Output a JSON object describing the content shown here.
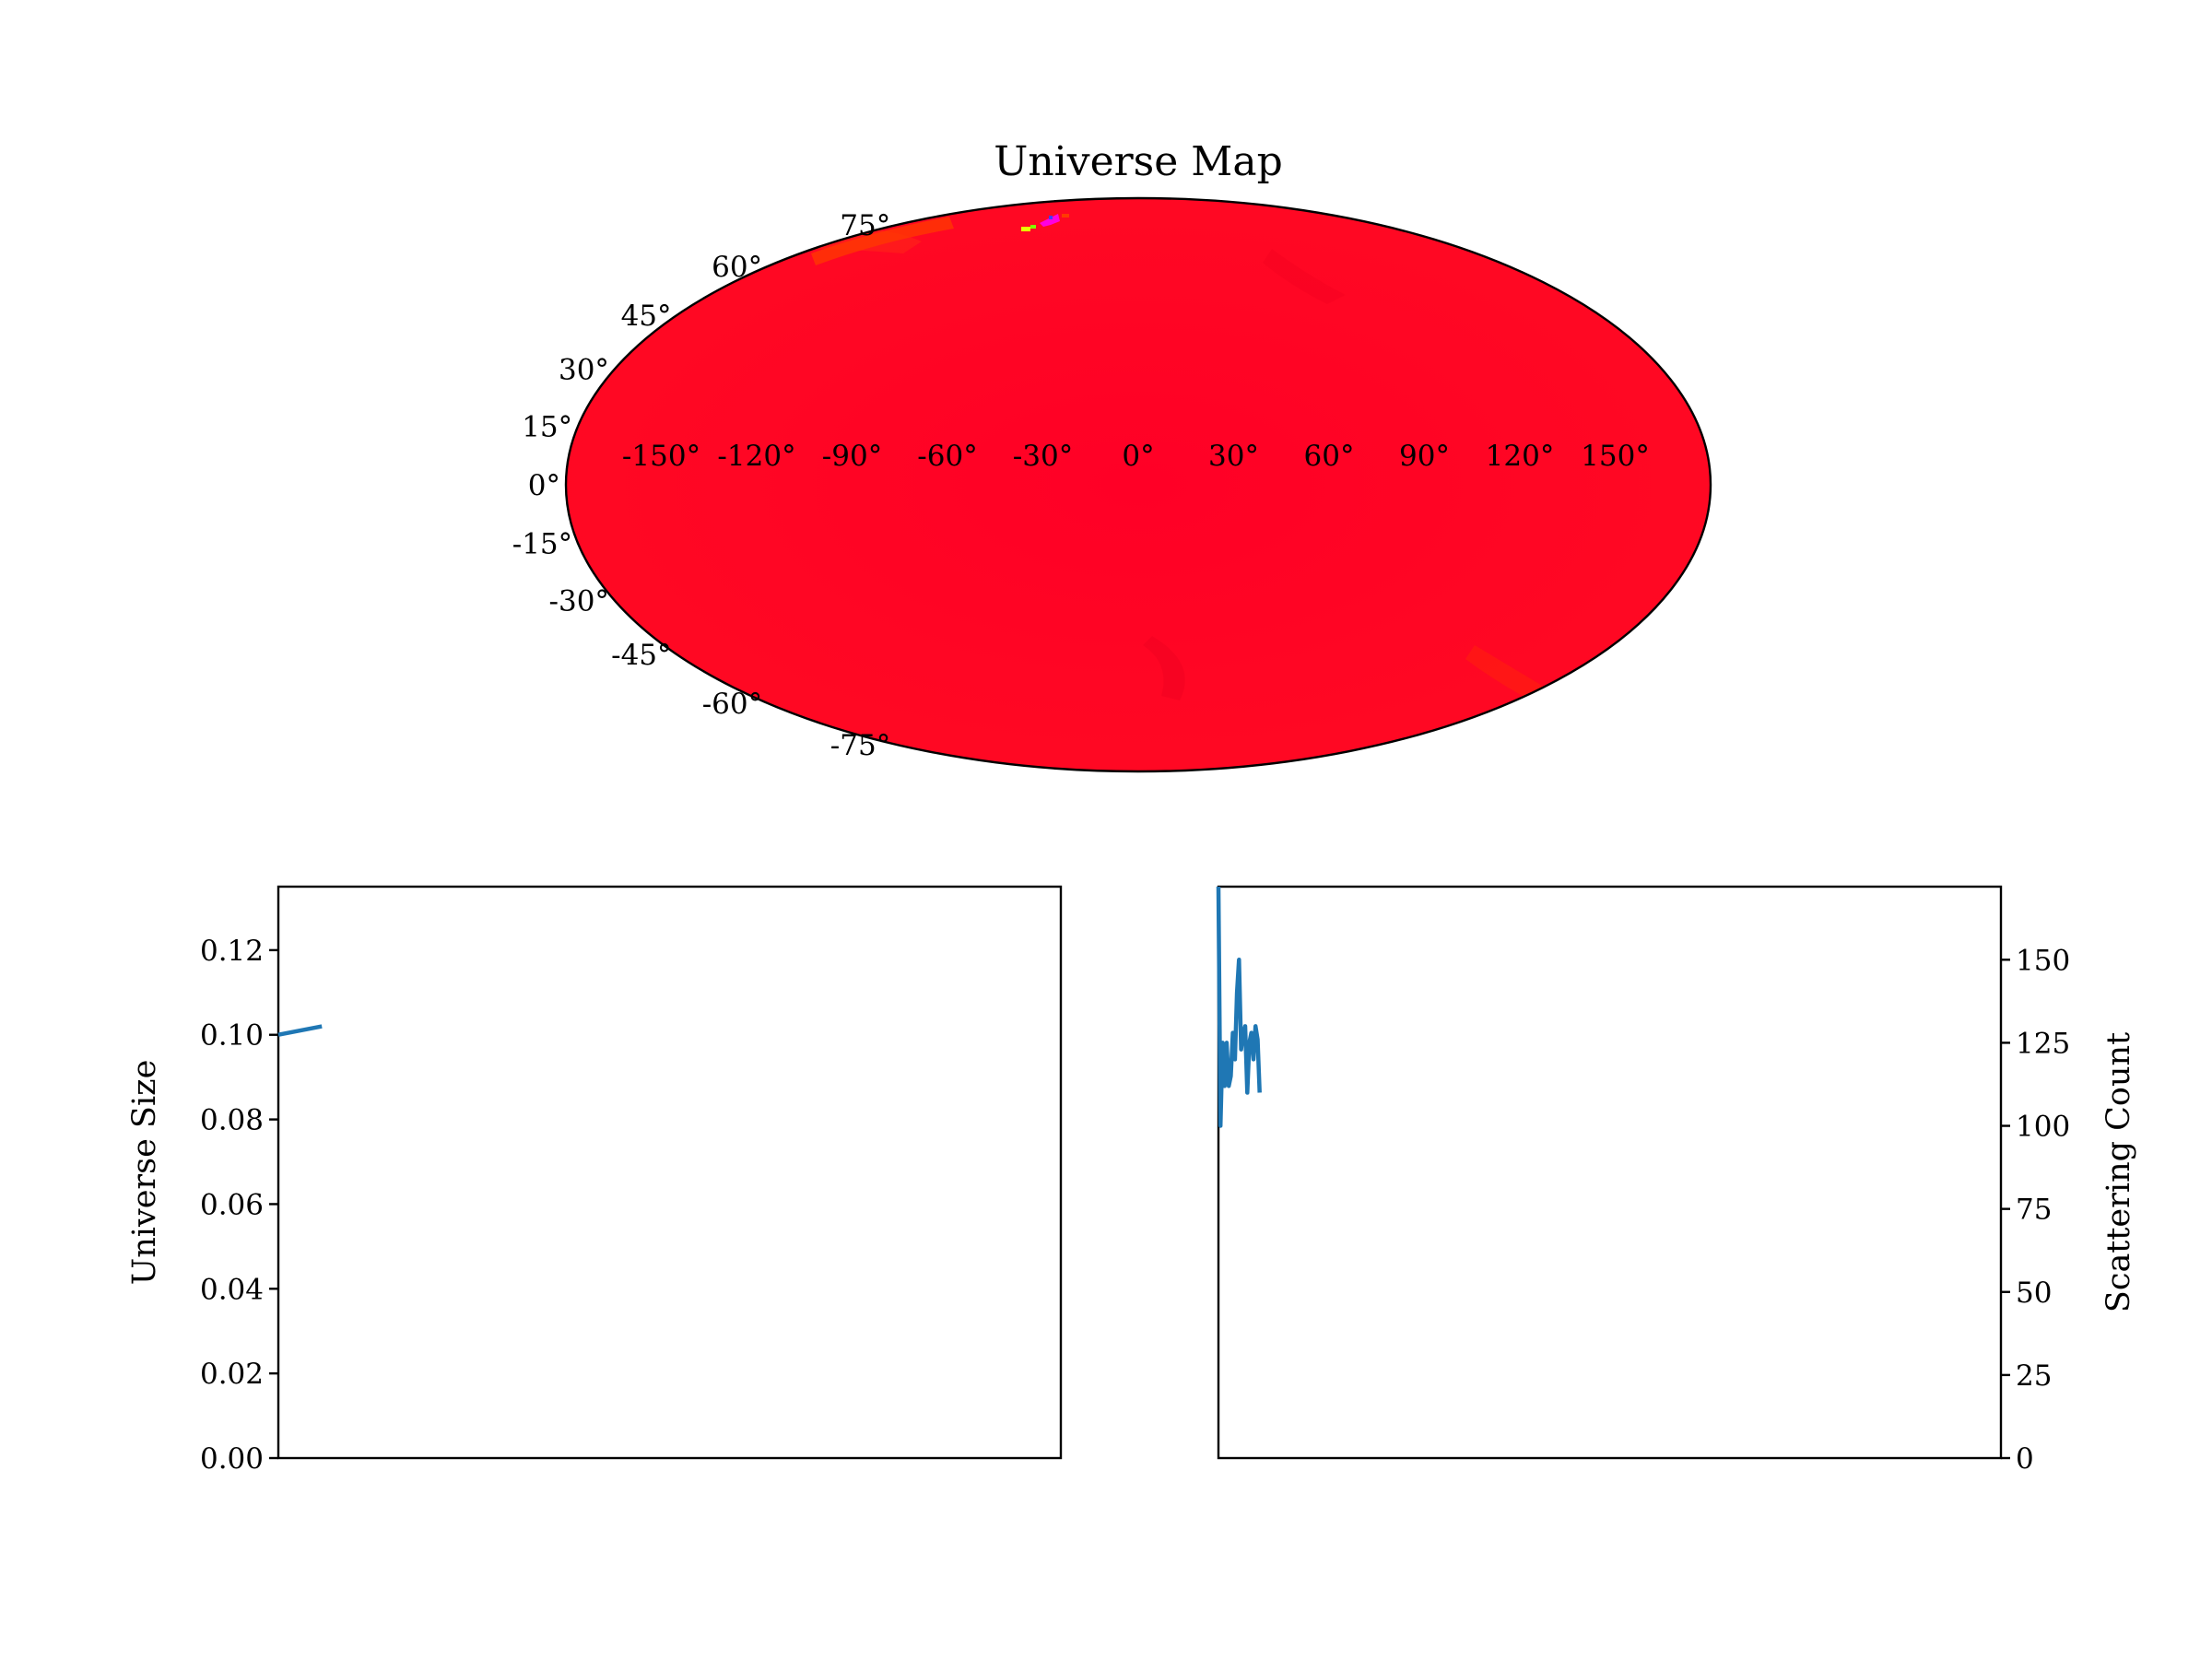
{
  "chart_data": [
    {
      "type": "heatmap",
      "title": "Universe Map",
      "projection": "mollweide",
      "longitude_ticks": [
        "-150°",
        "-120°",
        "-90°",
        "-60°",
        "-30°",
        "0°",
        "30°",
        "60°",
        "90°",
        "120°",
        "150°"
      ],
      "latitude_ticks": [
        "75°",
        "60°",
        "45°",
        "30°",
        "15°",
        "0°",
        "-15°",
        "-30°",
        "-45°",
        "-60°",
        "-75°"
      ],
      "colors": {
        "fill": "#ff0027",
        "border": "#000000",
        "hot_spots": [
          "#ff3a00",
          "#e8ff00",
          "#ff00e0"
        ]
      }
    },
    {
      "type": "line",
      "xlabel": "",
      "ylabel": "Universe Size",
      "ylim": [
        0,
        0.135
      ],
      "yticks": [
        "0.00",
        "0.02",
        "0.04",
        "0.06",
        "0.08",
        "0.10",
        "0.12"
      ],
      "xticks_visible": false,
      "series": [
        {
          "x": [
            0,
            1
          ],
          "values": [
            0.1,
            0.102
          ],
          "color": "#1f77b4"
        }
      ],
      "xlim": [
        0,
        18
      ]
    },
    {
      "type": "line",
      "xlabel": "",
      "ylabel": "Scattering Count",
      "ylim": [
        0,
        172
      ],
      "yticks": [
        "0",
        "25",
        "50",
        "75",
        "100",
        "125",
        "150"
      ],
      "y_axis_side": "right",
      "xticks_visible": false,
      "series": [
        {
          "x": [
            0,
            0.5,
            1,
            1.5,
            2,
            2.5,
            3,
            3.5,
            4,
            4.5,
            5,
            5.5,
            6,
            6.5,
            7,
            7.5,
            8,
            8.5,
            9,
            9.5,
            10
          ],
          "values": [
            172,
            100,
            125,
            112,
            125,
            112,
            115,
            128,
            120,
            140,
            150,
            123,
            128,
            130,
            110,
            125,
            128,
            120,
            130,
            126,
            110
          ],
          "color": "#1f77b4"
        }
      ],
      "xlim": [
        0,
        190
      ]
    }
  ]
}
